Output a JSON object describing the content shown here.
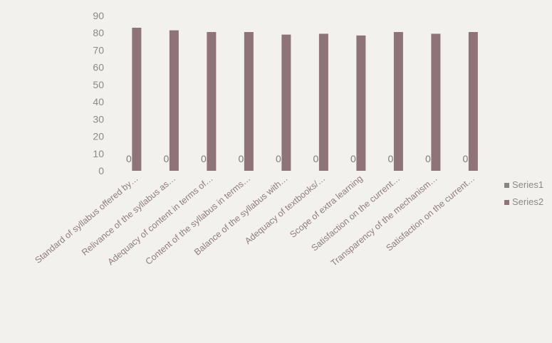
{
  "chart_data": {
    "type": "bar",
    "categories": [
      "Standard of syllabus offered by…",
      "Relivance of the syllabus as…",
      "Adequacy of content in terms of…",
      "Content of the syllabus in terms…",
      "Balance of the syllabus with…",
      "Adequacy of textbooks/…",
      "Scope of extra learning",
      "Satisfaction on the current…",
      "Transparency of the mechanism…",
      "Satisfaction on the current…"
    ],
    "series": [
      {
        "name": "Series1",
        "values": [
          0,
          0,
          0,
          0,
          0,
          0,
          0,
          0,
          0,
          0
        ],
        "color": "#8a8585"
      },
      {
        "name": "Series2",
        "values": [
          83,
          81.5,
          80.5,
          80.5,
          79,
          79.5,
          78.5,
          80.5,
          79.5,
          80.5
        ],
        "color": "#8e7478"
      }
    ],
    "data_labels": [
      "0",
      "0",
      "0",
      "0",
      "0",
      "0",
      "0",
      "0",
      "0",
      "0"
    ],
    "yticks": [
      "0",
      "10",
      "20",
      "30",
      "40",
      "50",
      "60",
      "70",
      "80",
      "90"
    ],
    "ylim": [
      0,
      90
    ],
    "legend_position": "right",
    "grid": false
  }
}
